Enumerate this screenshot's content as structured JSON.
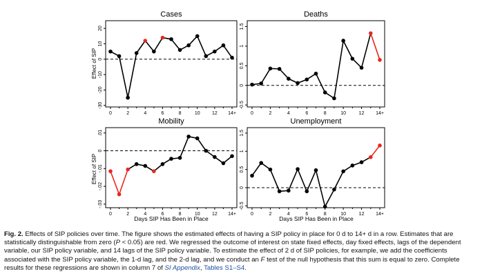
{
  "figure": {
    "xlabel": "Days SIP Has Been in Place",
    "ylabel": "Effect of SIP",
    "xticks": [
      "0",
      "2",
      "4",
      "6",
      "8",
      "10",
      "12",
      "14+"
    ],
    "colors": {
      "significant": "#e8281e",
      "not_significant": "#000000",
      "zero_line": "#000000"
    }
  },
  "chart_data": [
    {
      "type": "line",
      "title": "Cases",
      "x": [
        0,
        1,
        2,
        3,
        4,
        5,
        6,
        7,
        8,
        9,
        10,
        11,
        12,
        13,
        14
      ],
      "values": [
        5,
        2,
        -25,
        4,
        12,
        5,
        14,
        13,
        6,
        9,
        15,
        2,
        5,
        9,
        1
      ],
      "significant": [
        false,
        false,
        false,
        false,
        true,
        false,
        true,
        false,
        false,
        false,
        false,
        false,
        false,
        false,
        false
      ],
      "ylim": [
        -31,
        25
      ],
      "yticks": [
        "20",
        "10",
        "0",
        "-10",
        "-20",
        "-30"
      ],
      "ytick_values": [
        20,
        10,
        0,
        -10,
        -20,
        -30
      ]
    },
    {
      "type": "line",
      "title": "Deaths",
      "x": [
        0,
        1,
        2,
        3,
        4,
        5,
        6,
        7,
        8,
        9,
        10,
        11,
        12,
        13,
        14
      ],
      "values": [
        0.02,
        0.05,
        0.43,
        0.42,
        0.17,
        0.06,
        0.15,
        0.3,
        -0.18,
        -0.33,
        1.14,
        0.68,
        0.45,
        1.33,
        0.65
      ],
      "significant": [
        false,
        false,
        false,
        false,
        false,
        false,
        false,
        false,
        false,
        false,
        false,
        false,
        false,
        true,
        true
      ],
      "ylim": [
        -0.55,
        1.65
      ],
      "yticks": [
        "1.5",
        "1",
        "0.5",
        "0",
        "-0.5"
      ],
      "ytick_values": [
        1.5,
        1,
        0.5,
        0,
        -0.5
      ]
    },
    {
      "type": "line",
      "title": "Mobility",
      "x": [
        0,
        1,
        2,
        3,
        4,
        5,
        6,
        7,
        8,
        9,
        10,
        11,
        12,
        13,
        14
      ],
      "values": [
        -0.0115,
        -0.0245,
        -0.0105,
        -0.0075,
        -0.0085,
        -0.0115,
        -0.0075,
        -0.0045,
        -0.004,
        0.008,
        0.007,
        0.0,
        -0.0035,
        -0.007,
        -0.003
      ],
      "significant": [
        true,
        true,
        true,
        false,
        false,
        true,
        false,
        false,
        false,
        false,
        false,
        false,
        false,
        false,
        false
      ],
      "ylim": [
        -0.032,
        0.013
      ],
      "yticks": [
        ".01",
        "0",
        "-.01",
        "-.02",
        "-.03"
      ],
      "ytick_values": [
        0.01,
        0,
        -0.01,
        -0.02,
        -0.03
      ]
    },
    {
      "type": "line",
      "title": "Unemployment",
      "x": [
        0,
        1,
        2,
        3,
        4,
        5,
        6,
        7,
        8,
        9,
        10,
        11,
        12,
        13,
        14
      ],
      "values": [
        0.33,
        0.68,
        0.5,
        -0.1,
        -0.08,
        0.51,
        -0.1,
        0.48,
        -0.52,
        -0.05,
        0.45,
        0.61,
        0.7,
        0.84,
        1.16
      ],
      "significant": [
        false,
        false,
        false,
        false,
        false,
        false,
        false,
        false,
        false,
        false,
        false,
        false,
        false,
        true,
        true
      ],
      "ylim": [
        -0.55,
        1.65
      ],
      "yticks": [
        "1.5",
        "1",
        "0.5",
        "0",
        "-0.5"
      ],
      "ytick_values": [
        1.5,
        1,
        0.5,
        0,
        -0.5
      ]
    }
  ],
  "caption": {
    "label": "Fig. 2.",
    "text_1": " Effects of SIP policies over time. The figure shows the estimated effects of having a SIP policy in place for 0 d to 14+ d in a row. Estimates that are statistically distinguishable from zero (",
    "p_value": "P",
    "text_2": " < 0.05) are red. We regressed the outcome of interest on state fixed effects, day fixed effects, lags of the dependent variable, our SIP policy variable, and 14 lags of the SIP policy variable. To estimate the effect of 2 d of SIP policies, for example, we add the coefficients associated with the SIP policy variable, the 1-d lag, and the 2-d lag, and we conduct an ",
    "f_test": "F",
    "text_3": " test of the null hypothesis that this sum is equal to zero. Complete results for these regressions are shown in column 7 of ",
    "si_link": "SI Appendix",
    "text_4": ", ",
    "tables_link": "Tables S1–S4",
    "text_5": "."
  }
}
